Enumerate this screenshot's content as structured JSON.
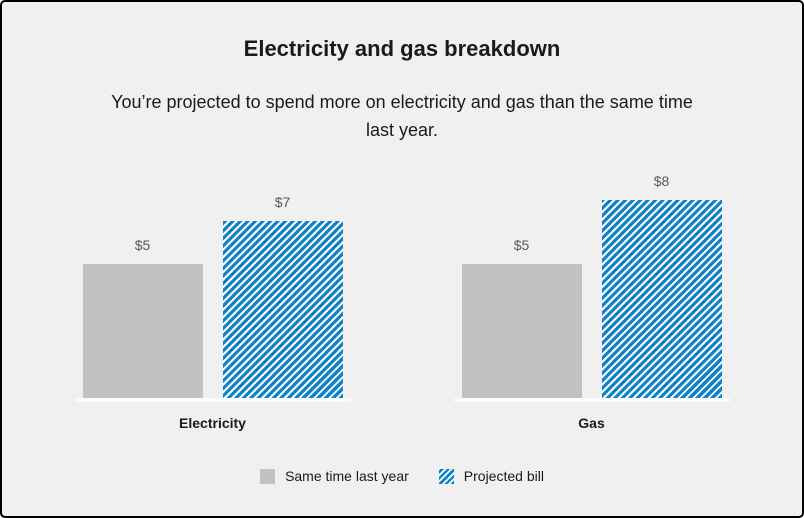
{
  "header": {
    "title": "Electricity and gas breakdown",
    "subtitle": "You’re projected to spend more on electricity and gas than the same time last year."
  },
  "chart_data": {
    "type": "bar",
    "categories": [
      "Electricity",
      "Gas"
    ],
    "series": [
      {
        "name": "Same time last year",
        "values": [
          5,
          5
        ],
        "data_labels": [
          "$5",
          "$5"
        ],
        "style": "solid",
        "color": "#c2c2c2"
      },
      {
        "name": "Projected bill",
        "values": [
          7,
          8
        ],
        "data_labels": [
          "$7",
          "$8"
        ],
        "style": "diagonal-stripes",
        "color": "#0f83c6"
      }
    ],
    "value_prefix": "$",
    "ylim": [
      0,
      8
    ],
    "grid": false,
    "axes_visible": false,
    "legend_position": "bottom"
  },
  "legend": {
    "items": [
      {
        "label": "Same time last year",
        "swatch_style": "solid",
        "swatch_color": "#c2c2c2"
      },
      {
        "label": "Projected bill",
        "swatch_style": "diagonal-stripes",
        "swatch_color": "#0f83c6"
      }
    ]
  },
  "colors": {
    "background": "#f0f0f0",
    "border": "#000000",
    "title_text": "#1a1a1a",
    "subtitle_text": "#1a1a1a",
    "value_label_text": "#595959",
    "category_label_text": "#1a1a1a",
    "bar_gray": "#c2c2c2",
    "bar_blue": "#0f83c6",
    "stripe_gap": "#ffffff",
    "baseline": "#fafafa"
  }
}
